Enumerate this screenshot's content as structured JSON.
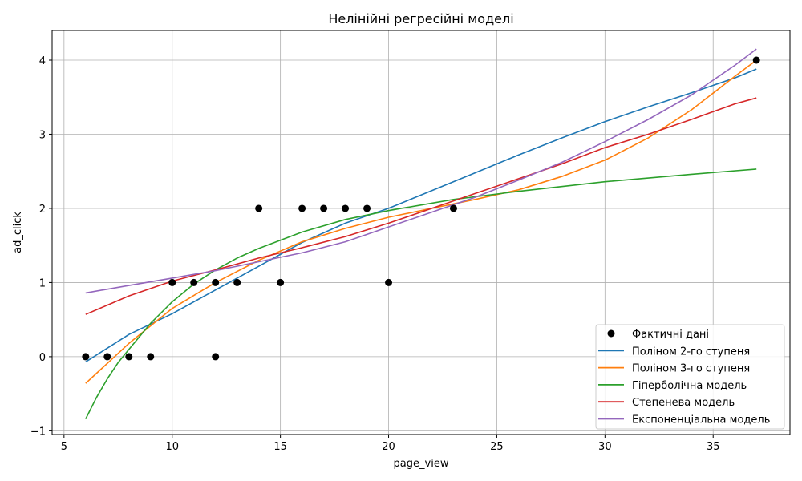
{
  "chart_data": {
    "type": "scatter",
    "title": "Нелінійні регресійні моделі",
    "xlabel": "page_view",
    "ylabel": "ad_click",
    "xlim": [
      4.45,
      38.55
    ],
    "ylim": [
      -1.05,
      4.4
    ],
    "xticks": [
      5,
      10,
      15,
      20,
      25,
      30,
      35
    ],
    "yticks": [
      -1,
      0,
      1,
      2,
      3,
      4
    ],
    "grid": true,
    "legend_position": "bottom-right",
    "scatter": {
      "name": "Фактичні дані",
      "color": "#000000",
      "points": [
        [
          6,
          0
        ],
        [
          7,
          0
        ],
        [
          8,
          0
        ],
        [
          9,
          0
        ],
        [
          10,
          1
        ],
        [
          11,
          1
        ],
        [
          12,
          1
        ],
        [
          12,
          0
        ],
        [
          13,
          1
        ],
        [
          14,
          2
        ],
        [
          15,
          1
        ],
        [
          16,
          2
        ],
        [
          17,
          2
        ],
        [
          18,
          2
        ],
        [
          19,
          2
        ],
        [
          20,
          1
        ],
        [
          23,
          2
        ],
        [
          37,
          4
        ]
      ]
    },
    "series": [
      {
        "name": "Поліном 2-го ступеня",
        "color": "#1f77b4",
        "x": [
          6,
          8,
          10,
          12,
          14,
          16,
          18,
          20,
          22,
          24,
          26,
          28,
          30,
          32,
          34,
          36,
          37
        ],
        "y": [
          -0.07,
          0.3,
          0.58,
          0.9,
          1.22,
          1.54,
          1.8,
          2.0,
          2.24,
          2.48,
          2.72,
          2.95,
          3.17,
          3.37,
          3.56,
          3.76,
          3.88
        ]
      },
      {
        "name": "Поліном 3-го ступеня",
        "color": "#ff7f0e",
        "x": [
          6,
          8,
          10,
          12,
          14,
          16,
          18,
          20,
          22,
          24,
          26,
          28,
          30,
          32,
          34,
          36,
          37
        ],
        "y": [
          -0.36,
          0.18,
          0.65,
          1.0,
          1.3,
          1.55,
          1.73,
          1.88,
          2.0,
          2.12,
          2.25,
          2.43,
          2.65,
          2.95,
          3.33,
          3.78,
          4.0
        ]
      },
      {
        "name": "Гіперболічна модель",
        "color": "#2ca02c",
        "x": [
          6,
          6.5,
          7,
          7.5,
          8,
          9,
          10,
          11,
          12,
          13,
          14,
          16,
          18,
          20,
          23,
          26,
          30,
          34,
          37
        ],
        "y": [
          -0.84,
          -0.55,
          -0.3,
          -0.08,
          0.1,
          0.45,
          0.74,
          0.98,
          1.17,
          1.33,
          1.46,
          1.68,
          1.85,
          1.97,
          2.12,
          2.23,
          2.36,
          2.46,
          2.53
        ]
      },
      {
        "name": "Степенева модель",
        "color": "#d62728",
        "x": [
          6,
          8,
          10,
          12,
          14,
          16,
          18,
          20,
          22,
          24,
          26,
          28,
          30,
          32,
          34,
          36,
          37
        ],
        "y": [
          0.57,
          0.82,
          1.02,
          1.17,
          1.33,
          1.47,
          1.62,
          1.8,
          2.0,
          2.2,
          2.4,
          2.6,
          2.82,
          3.0,
          3.2,
          3.41,
          3.49
        ]
      },
      {
        "name": "Експоненціальна модель",
        "color": "#9467bd",
        "x": [
          6,
          8,
          10,
          12,
          14,
          16,
          18,
          20,
          22,
          24,
          26,
          28,
          30,
          32,
          34,
          36,
          37
        ],
        "y": [
          0.86,
          0.96,
          1.06,
          1.16,
          1.28,
          1.4,
          1.55,
          1.75,
          1.95,
          2.15,
          2.38,
          2.62,
          2.9,
          3.2,
          3.53,
          3.93,
          4.15
        ]
      }
    ]
  }
}
